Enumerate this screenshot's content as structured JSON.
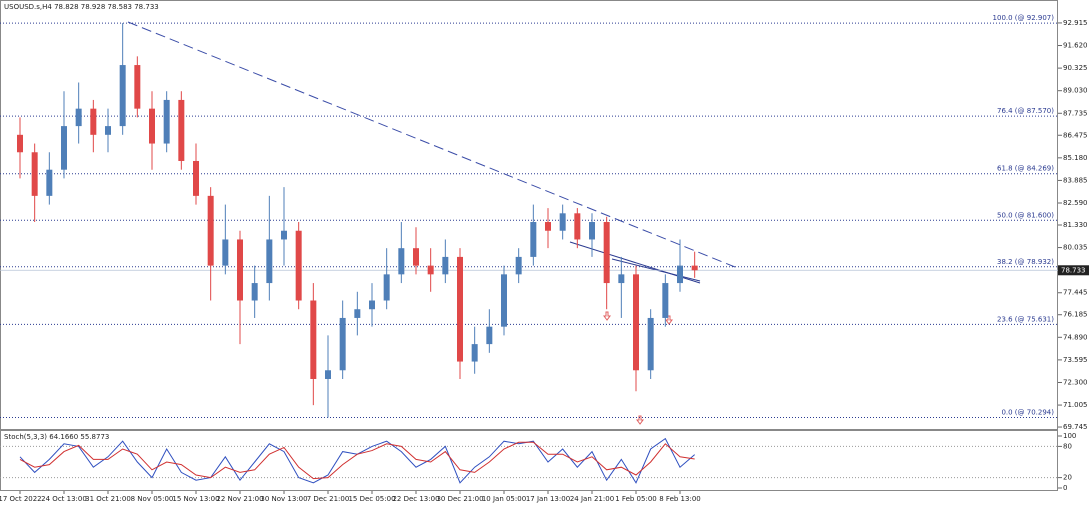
{
  "chart_data": {
    "type": "candlestick",
    "title": "USOUSD.s,H4  78.828 78.928 78.583 78.733",
    "categories": [
      "17 Oct 2022",
      null,
      null,
      "24 Oct 13:00",
      null,
      null,
      "31 Oct 21:00",
      null,
      null,
      "8 Nov 05:00",
      null,
      null,
      "15 Nov 13:00",
      null,
      null,
      "22 Nov 21:00",
      null,
      null,
      "30 Nov 13:00",
      null,
      null,
      "7 Dec 21:00",
      null,
      null,
      "15 Dec 05:00",
      null,
      null,
      "22 Dec 13:00",
      null,
      null,
      "30 Dec 21:00",
      null,
      null,
      "10 Jan 05:00",
      null,
      null,
      "17 Jan 13:00",
      null,
      null,
      "24 Jan 21:00",
      null,
      null,
      "1 Feb 05:00",
      null,
      null,
      "8 Feb 13:00",
      null
    ],
    "open": [
      86.5,
      85.5,
      83,
      84.5,
      87,
      88,
      86.5,
      87,
      90.5,
      88,
      86,
      88.5,
      85,
      83,
      79,
      80.5,
      77,
      78,
      80.5,
      81,
      77,
      72.5,
      73,
      76,
      76.5,
      77,
      78.5,
      80,
      79,
      78.5,
      79.5,
      73.5,
      74.5,
      75.5,
      78.5,
      79.5,
      81.5,
      81,
      82,
      80.5,
      81.5,
      78,
      78.5,
      73,
      76,
      78,
      79
    ],
    "high": [
      87.5,
      86,
      85.5,
      89,
      89.5,
      88.5,
      88,
      92.907,
      91,
      89,
      89,
      89,
      86,
      83.5,
      82.5,
      81,
      79,
      83,
      83.5,
      81.5,
      78,
      75,
      77,
      77.5,
      78,
      80,
      81.5,
      81.2,
      80,
      80.5,
      80,
      75.5,
      76.5,
      79,
      80,
      82.5,
      82.3,
      82.5,
      82.3,
      82,
      81.8,
      79.5,
      79,
      76.5,
      78.5,
      80.5,
      79.8
    ],
    "low": [
      84,
      81.5,
      82.5,
      84,
      86,
      85.5,
      85.5,
      86.5,
      87.5,
      84.5,
      85.5,
      84.5,
      82.5,
      77,
      78.5,
      74.5,
      76,
      77,
      79,
      76.5,
      71,
      70.294,
      72.5,
      75,
      75.5,
      76.5,
      78,
      78.5,
      77.5,
      78,
      72.5,
      72.8,
      74,
      75,
      78,
      79,
      80,
      80.5,
      80,
      79.5,
      76.5,
      76,
      71.8,
      72.5,
      75.5,
      77.5,
      78.3
    ],
    "close": [
      85.5,
      83,
      84.5,
      87,
      88,
      86.5,
      87,
      90.5,
      88,
      86,
      88.5,
      85,
      83,
      79,
      80.5,
      77,
      78,
      80.5,
      81,
      77,
      72.5,
      73,
      76,
      76.5,
      77,
      78.5,
      80,
      79,
      78.5,
      79.5,
      73.5,
      74.5,
      75.5,
      78.5,
      79.5,
      81.5,
      81,
      82,
      80.5,
      81.5,
      78,
      78.5,
      73,
      76,
      78,
      79,
      78.733
    ],
    "up_color": "#4f7fb8",
    "down_color": "#e04848",
    "ylim": [
      69.69,
      94.23
    ],
    "yticks": [
      92.915,
      {
        "value": 91.62,
        "label": "91.620"
      },
      90.325,
      {
        "value": 89.03,
        "label": "89.030"
      },
      87.735,
      86.475,
      {
        "value": 85.18,
        "label": "85.180"
      },
      83.885,
      {
        "value": 82.59,
        "label": "82.590"
      },
      {
        "value": 81.33,
        "label": "81.330"
      },
      80.035,
      77.445,
      76.185,
      {
        "value": 74.89,
        "label": "74.890"
      },
      73.595,
      {
        "value": 72.3,
        "label": "72.300"
      },
      71.005,
      69.745
    ],
    "current_price": 78.733,
    "fib_levels": [
      {
        "label": "100.0 (@ 92.907)",
        "value": 92.907
      },
      {
        "label": "76.4 (@ 87.570)",
        "value": 87.57
      },
      {
        "label": "61.8 (@ 84.269)",
        "value": 84.269
      },
      {
        "label": "50.0 (@ 81.600)",
        "value": 81.6
      },
      {
        "label": "38.2 (@ 78.932)",
        "value": 78.932
      },
      {
        "label": "23.6 (@ 75.631)",
        "value": 75.631
      },
      {
        "label": "0.0 (@ 70.294)",
        "value": 70.294
      }
    ],
    "stoch": {
      "title": "Stoch(5,3,3) 64.1660 55.8773",
      "ylim": [
        0,
        100
      ],
      "yticks": [
        0,
        20,
        80,
        100
      ],
      "series": [
        {
          "color": "#3050c0",
          "values": [
            60,
            30,
            55,
            85,
            80,
            40,
            60,
            90,
            50,
            20,
            75,
            30,
            15,
            20,
            60,
            15,
            50,
            85,
            70,
            20,
            10,
            25,
            70,
            65,
            80,
            90,
            70,
            40,
            55,
            80,
            10,
            40,
            60,
            90,
            85,
            90,
            50,
            75,
            40,
            70,
            15,
            55,
            10,
            75,
            95,
            40,
            64.166
          ]
        },
        {
          "color": "#d03030",
          "values": [
            55,
            40,
            45,
            70,
            82,
            55,
            55,
            75,
            65,
            35,
            50,
            45,
            25,
            20,
            40,
            30,
            35,
            65,
            78,
            40,
            18,
            20,
            45,
            65,
            72,
            85,
            80,
            55,
            50,
            70,
            35,
            30,
            50,
            75,
            88,
            88,
            65,
            65,
            50,
            60,
            35,
            40,
            25,
            50,
            85,
            60,
            55.8773
          ]
        }
      ]
    }
  }
}
